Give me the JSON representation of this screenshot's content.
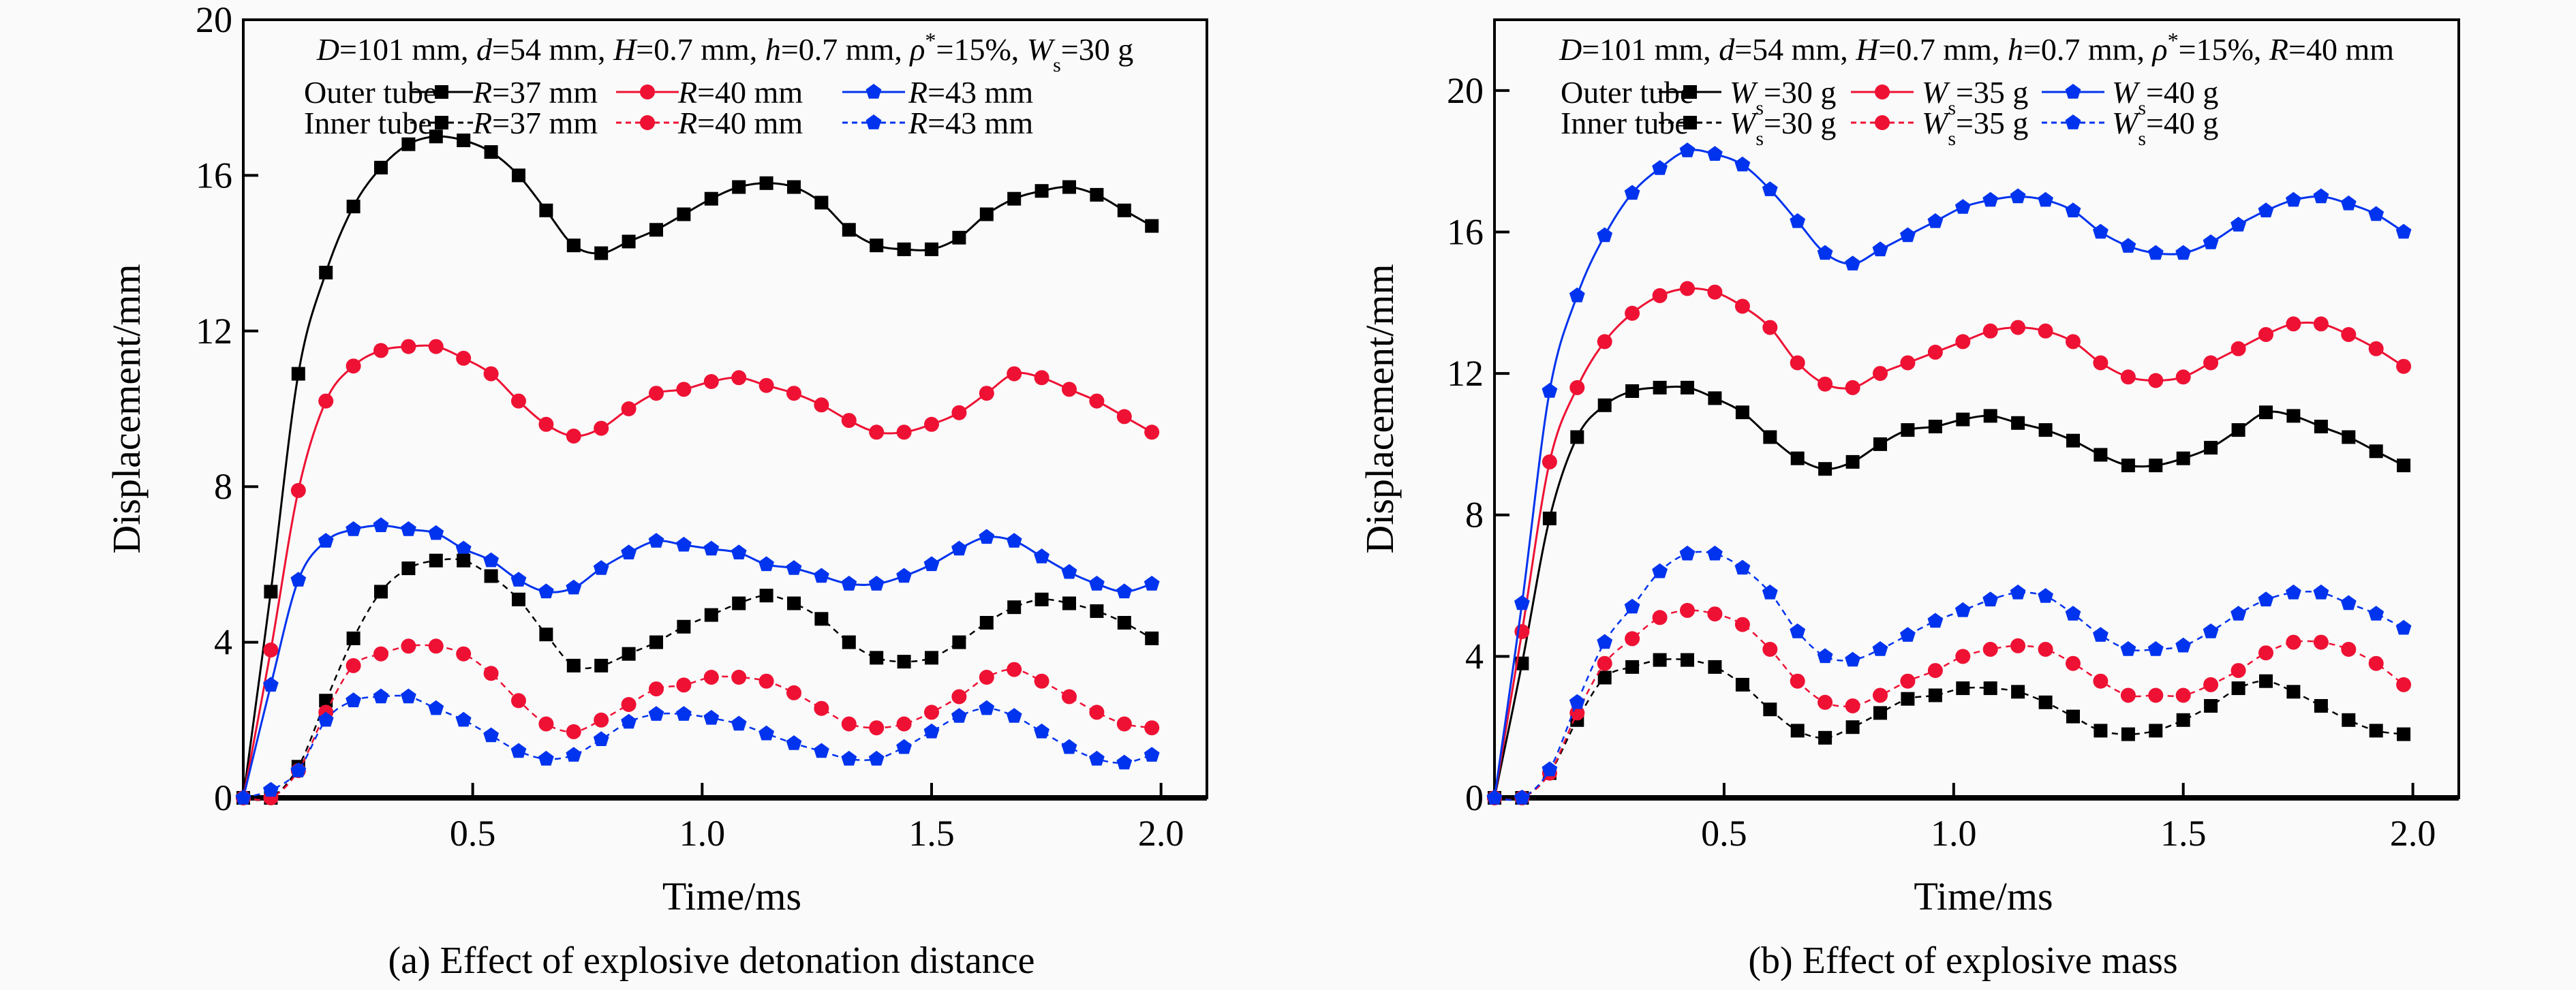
{
  "chart_data": [
    {
      "type": "line",
      "caption": "(a) Effect of explosive detonation distance",
      "annotation": "D=101 mm, d=54 mm, H=0.7 mm, h=0.7 mm, ρ*=15%, Ws=30 g",
      "xlabel": "Time/ms",
      "ylabel": "Displacement/mm",
      "xlim": [
        0,
        2.1
      ],
      "ylim": [
        0,
        20
      ],
      "xticks": [
        "0.5",
        "1.0",
        "1.5",
        "2.0"
      ],
      "yticks": [
        "0",
        "4",
        "8",
        "12",
        "16",
        "20"
      ],
      "grid": false,
      "legend_placement": "top",
      "legend_groups": [
        "Outer tube",
        "Inner tube"
      ],
      "x": [
        0,
        0.06,
        0.12,
        0.18,
        0.24,
        0.3,
        0.36,
        0.42,
        0.48,
        0.54,
        0.6,
        0.66,
        0.72,
        0.78,
        0.84,
        0.9,
        0.96,
        1.02,
        1.08,
        1.14,
        1.2,
        1.26,
        1.32,
        1.38,
        1.44,
        1.5,
        1.56,
        1.62,
        1.68,
        1.74,
        1.8,
        1.86,
        1.92,
        1.98
      ],
      "series": [
        {
          "name": "R=37 mm",
          "group": "Outer tube",
          "color": "#000000",
          "marker": "square",
          "dash": false,
          "values": [
            0,
            5.3,
            10.9,
            13.5,
            15.2,
            16.2,
            16.8,
            17.0,
            16.9,
            16.6,
            16.0,
            15.1,
            14.2,
            14.0,
            14.3,
            14.6,
            15.0,
            15.4,
            15.7,
            15.8,
            15.7,
            15.3,
            14.6,
            14.2,
            14.1,
            14.1,
            14.4,
            15.0,
            15.4,
            15.6,
            15.7,
            15.5,
            15.1,
            14.7
          ]
        },
        {
          "name": "R=40 mm",
          "group": "Outer tube",
          "color": "#ee1133",
          "marker": "circle",
          "dash": false,
          "values": [
            0,
            3.8,
            7.9,
            10.2,
            11.1,
            11.5,
            11.6,
            11.6,
            11.3,
            10.9,
            10.2,
            9.6,
            9.3,
            9.5,
            10.0,
            10.4,
            10.5,
            10.7,
            10.8,
            10.6,
            10.4,
            10.1,
            9.7,
            9.4,
            9.4,
            9.6,
            9.9,
            10.4,
            10.9,
            10.8,
            10.5,
            10.2,
            9.8,
            9.4
          ]
        },
        {
          "name": "R=43 mm",
          "group": "Outer tube",
          "color": "#0033ee",
          "marker": "pentagon",
          "dash": false,
          "values": [
            0,
            2.9,
            5.6,
            6.6,
            6.9,
            7.0,
            6.9,
            6.8,
            6.4,
            6.1,
            5.6,
            5.3,
            5.4,
            5.9,
            6.3,
            6.6,
            6.5,
            6.4,
            6.3,
            6.0,
            5.9,
            5.7,
            5.5,
            5.5,
            5.7,
            6.0,
            6.4,
            6.7,
            6.6,
            6.2,
            5.8,
            5.5,
            5.3,
            5.5
          ]
        },
        {
          "name": "R=37 mm",
          "group": "Inner tube",
          "color": "#000000",
          "marker": "square",
          "dash": true,
          "values": [
            0,
            0,
            0.8,
            2.5,
            4.1,
            5.3,
            5.9,
            6.1,
            6.1,
            5.7,
            5.1,
            4.2,
            3.4,
            3.4,
            3.7,
            4.0,
            4.4,
            4.7,
            5.0,
            5.2,
            5.0,
            4.6,
            4.0,
            3.6,
            3.5,
            3.6,
            4.0,
            4.5,
            4.9,
            5.1,
            5.0,
            4.8,
            4.5,
            4.1
          ]
        },
        {
          "name": "R=40 mm",
          "group": "Inner tube",
          "color": "#ee1133",
          "marker": "circle",
          "dash": true,
          "values": [
            0,
            0,
            0.7,
            2.2,
            3.4,
            3.7,
            3.9,
            3.9,
            3.7,
            3.2,
            2.5,
            1.9,
            1.7,
            2.0,
            2.4,
            2.8,
            2.9,
            3.1,
            3.1,
            3.0,
            2.7,
            2.3,
            1.9,
            1.8,
            1.9,
            2.2,
            2.6,
            3.1,
            3.3,
            3.0,
            2.6,
            2.2,
            1.9,
            1.8
          ]
        },
        {
          "name": "R=43 mm",
          "group": "Inner tube",
          "color": "#0033ee",
          "marker": "pentagon",
          "dash": true,
          "values": [
            0,
            0.2,
            0.7,
            2.0,
            2.5,
            2.6,
            2.6,
            2.3,
            2.0,
            1.6,
            1.2,
            1.0,
            1.1,
            1.5,
            1.95,
            2.15,
            2.15,
            2.05,
            1.9,
            1.65,
            1.4,
            1.2,
            1.0,
            1.0,
            1.3,
            1.7,
            2.1,
            2.3,
            2.1,
            1.7,
            1.3,
            1.0,
            0.9,
            1.1
          ]
        }
      ]
    },
    {
      "type": "line",
      "caption": "(b) Effect of explosive mass",
      "annotation": "D=101 mm, d=54 mm, H=0.7 mm, h=0.7 mm, ρ*=15%, R=40 mm",
      "xlabel": "Time/ms",
      "ylabel": "Displacement/mm",
      "xlim": [
        0,
        2.1
      ],
      "ylim": [
        0,
        22
      ],
      "xticks": [
        "0.5",
        "1.0",
        "1.5",
        "2.0"
      ],
      "yticks": [
        "0",
        "4",
        "8",
        "12",
        "16",
        "20"
      ],
      "grid": false,
      "legend_placement": "top",
      "legend_groups": [
        "Outer tube",
        "Inner tube"
      ],
      "x": [
        0,
        0.06,
        0.12,
        0.18,
        0.24,
        0.3,
        0.36,
        0.42,
        0.48,
        0.54,
        0.6,
        0.66,
        0.72,
        0.78,
        0.84,
        0.9,
        0.96,
        1.02,
        1.08,
        1.14,
        1.2,
        1.26,
        1.32,
        1.38,
        1.44,
        1.5,
        1.56,
        1.62,
        1.68,
        1.74,
        1.8,
        1.86,
        1.92,
        1.98
      ],
      "series": [
        {
          "name": "Ws=30 g",
          "group": "Outer tube",
          "color": "#000000",
          "marker": "square",
          "dash": false,
          "values": [
            0,
            3.8,
            7.9,
            10.2,
            11.1,
            11.5,
            11.6,
            11.6,
            11.3,
            10.9,
            10.2,
            9.6,
            9.3,
            9.5,
            10.0,
            10.4,
            10.5,
            10.7,
            10.8,
            10.6,
            10.4,
            10.1,
            9.7,
            9.4,
            9.4,
            9.6,
            9.9,
            10.4,
            10.9,
            10.8,
            10.5,
            10.2,
            9.8,
            9.4
          ]
        },
        {
          "name": "Ws=35 g",
          "group": "Outer tube",
          "color": "#ee1133",
          "marker": "circle",
          "dash": false,
          "values": [
            0,
            4.7,
            9.5,
            11.6,
            12.9,
            13.7,
            14.2,
            14.4,
            14.3,
            13.9,
            13.3,
            12.3,
            11.7,
            11.6,
            12.0,
            12.3,
            12.6,
            12.9,
            13.2,
            13.3,
            13.2,
            12.9,
            12.3,
            11.9,
            11.8,
            11.9,
            12.3,
            12.7,
            13.1,
            13.4,
            13.4,
            13.1,
            12.7,
            12.2
          ]
        },
        {
          "name": "Ws=40 g",
          "group": "Outer tube",
          "color": "#0033ee",
          "marker": "pentagon",
          "dash": false,
          "values": [
            0,
            5.5,
            11.5,
            14.2,
            15.9,
            17.1,
            17.8,
            18.3,
            18.2,
            17.9,
            17.2,
            16.3,
            15.4,
            15.1,
            15.5,
            15.9,
            16.3,
            16.7,
            16.9,
            17.0,
            16.9,
            16.6,
            16.0,
            15.6,
            15.4,
            15.4,
            15.7,
            16.2,
            16.6,
            16.9,
            17.0,
            16.8,
            16.5,
            16.0
          ]
        },
        {
          "name": "Ws=30 g",
          "group": "Inner tube",
          "color": "#000000",
          "marker": "square",
          "dash": true,
          "values": [
            0,
            0,
            0.7,
            2.2,
            3.4,
            3.7,
            3.9,
            3.9,
            3.7,
            3.2,
            2.5,
            1.9,
            1.7,
            2.0,
            2.4,
            2.8,
            2.9,
            3.1,
            3.1,
            3.0,
            2.7,
            2.3,
            1.9,
            1.8,
            1.9,
            2.2,
            2.6,
            3.1,
            3.3,
            3.0,
            2.6,
            2.2,
            1.9,
            1.8
          ]
        },
        {
          "name": "Ws=35 g",
          "group": "Inner tube",
          "color": "#ee1133",
          "marker": "circle",
          "dash": true,
          "values": [
            0,
            0,
            0.7,
            2.4,
            3.8,
            4.5,
            5.1,
            5.3,
            5.2,
            4.9,
            4.2,
            3.3,
            2.7,
            2.6,
            2.9,
            3.3,
            3.6,
            4.0,
            4.2,
            4.3,
            4.2,
            3.8,
            3.3,
            2.9,
            2.9,
            2.9,
            3.2,
            3.6,
            4.1,
            4.4,
            4.4,
            4.2,
            3.8,
            3.2
          ]
        },
        {
          "name": "Ws=40 g",
          "group": "Inner tube",
          "color": "#0033ee",
          "marker": "pentagon",
          "dash": true,
          "values": [
            0,
            0,
            0.8,
            2.7,
            4.4,
            5.4,
            6.4,
            6.9,
            6.9,
            6.5,
            5.8,
            4.7,
            4.0,
            3.9,
            4.2,
            4.6,
            5.0,
            5.3,
            5.6,
            5.8,
            5.7,
            5.2,
            4.6,
            4.2,
            4.2,
            4.3,
            4.7,
            5.2,
            5.6,
            5.8,
            5.8,
            5.5,
            5.2,
            4.8
          ]
        }
      ]
    }
  ]
}
